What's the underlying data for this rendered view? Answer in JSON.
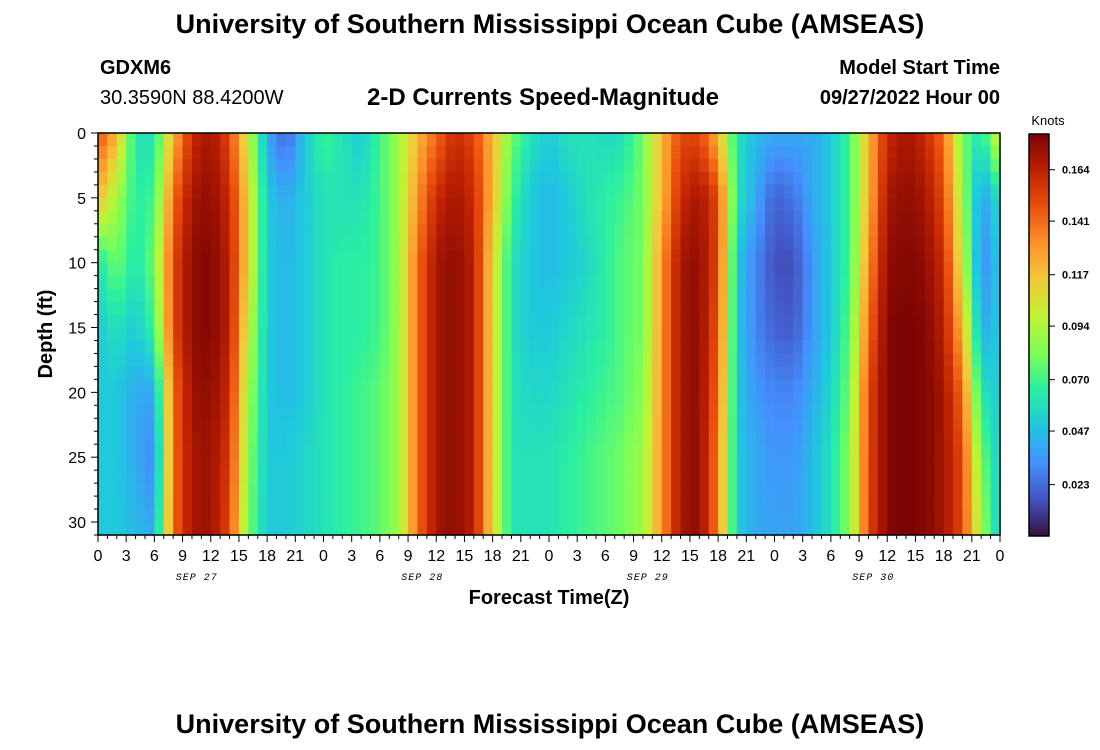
{
  "header": {
    "title": "University of Southern Mississippi Ocean Cube (AMSEAS)",
    "station": "GDXM6",
    "coords": "30.3590N  88.4200W",
    "plot_title": "2-D Currents Speed-Magnitude",
    "start_label": "Model Start Time",
    "start_value": "09/27/2022 Hour 00"
  },
  "footer": {
    "title": "University of Southern Mississippi Ocean Cube (AMSEAS)"
  },
  "chart_data": {
    "type": "heatmap",
    "title": "2-D Currents Speed-Magnitude",
    "xlabel": "Forecast Time(Z)",
    "ylabel": "Depth (ft)",
    "colorbar_label": "Knots",
    "colorbar_ticks": [
      "0.164",
      "0.141",
      "0.117",
      "0.094",
      "0.070",
      "0.047",
      "0.023"
    ],
    "colorbar_values": [
      0.164,
      0.141,
      0.117,
      0.094,
      0.07,
      0.047,
      0.023
    ],
    "color_range": [
      0.0,
      0.18
    ],
    "colormap": [
      "#30123b",
      "#4454c4",
      "#4490fe",
      "#1fc8de",
      "#29efa2",
      "#7dff56",
      "#c1f334",
      "#f1ca3a",
      "#fe922a",
      "#ea4f0d",
      "#be2102",
      "#7a0403"
    ],
    "xlim": [
      0,
      96
    ],
    "ylim": [
      0,
      31
    ],
    "x_ticks": [
      0,
      3,
      6,
      9,
      12,
      15,
      18,
      21,
      24,
      27,
      30,
      33,
      36,
      39,
      42,
      45,
      48,
      51,
      54,
      57,
      60,
      63,
      66,
      69,
      72,
      75,
      78,
      81,
      84,
      87,
      90,
      93,
      96
    ],
    "x_tick_labels": [
      "0",
      "3",
      "6",
      "9",
      "12",
      "15",
      "18",
      "21",
      "0",
      "3",
      "6",
      "9",
      "12",
      "15",
      "18",
      "21",
      "0",
      "3",
      "6",
      "9",
      "12",
      "15",
      "18",
      "21",
      "0",
      "3",
      "6",
      "9",
      "12",
      "15",
      "18",
      "21",
      "0"
    ],
    "y_ticks": [
      0,
      5,
      10,
      15,
      20,
      25,
      30
    ],
    "y_tick_labels": [
      "0",
      "5",
      "10",
      "15",
      "20",
      "25",
      "30"
    ],
    "day_labels": [
      {
        "x": 12,
        "label": "SEP 27"
      },
      {
        "x": 36,
        "label": "SEP 28"
      },
      {
        "x": 60,
        "label": "SEP 29"
      },
      {
        "x": 84,
        "label": "SEP 30"
      }
    ],
    "time_hours": [
      0,
      2,
      4,
      6,
      8,
      10,
      12,
      14,
      16,
      18,
      20,
      22,
      24,
      26,
      28,
      30,
      32,
      34,
      36,
      38,
      40,
      42,
      44,
      46,
      48,
      50,
      52,
      54,
      56,
      58,
      60,
      62,
      64,
      66,
      68,
      70,
      72,
      74,
      76,
      78,
      80,
      82,
      84,
      86,
      88,
      90,
      92,
      94,
      96
    ],
    "depth_ft": [
      0,
      5,
      10,
      15,
      20,
      25,
      31
    ],
    "speed_knots": [
      [
        0.15,
        0.12,
        0.06,
        0.06,
        0.12,
        0.16,
        0.17,
        0.15,
        0.1,
        0.04,
        0.02,
        0.05,
        0.07,
        0.06,
        0.05,
        0.07,
        0.09,
        0.12,
        0.14,
        0.16,
        0.15,
        0.12,
        0.08,
        0.06,
        0.05,
        0.06,
        0.06,
        0.055,
        0.06,
        0.08,
        0.12,
        0.15,
        0.15,
        0.12,
        0.06,
        0.045,
        0.04,
        0.04,
        0.04,
        0.05,
        0.07,
        0.12,
        0.16,
        0.17,
        0.16,
        0.14,
        0.08,
        0.06,
        0.11
      ],
      [
        0.12,
        0.09,
        0.065,
        0.07,
        0.14,
        0.17,
        0.175,
        0.16,
        0.11,
        0.05,
        0.04,
        0.05,
        0.06,
        0.06,
        0.06,
        0.07,
        0.09,
        0.13,
        0.16,
        0.17,
        0.16,
        0.12,
        0.07,
        0.05,
        0.045,
        0.05,
        0.06,
        0.065,
        0.07,
        0.08,
        0.12,
        0.16,
        0.17,
        0.15,
        0.06,
        0.04,
        0.02,
        0.025,
        0.04,
        0.05,
        0.07,
        0.12,
        0.17,
        0.175,
        0.17,
        0.15,
        0.09,
        0.035,
        0.06
      ],
      [
        0.06,
        0.08,
        0.06,
        0.08,
        0.15,
        0.175,
        0.178,
        0.165,
        0.11,
        0.05,
        0.045,
        0.05,
        0.06,
        0.065,
        0.065,
        0.07,
        0.09,
        0.14,
        0.17,
        0.175,
        0.165,
        0.11,
        0.06,
        0.05,
        0.045,
        0.05,
        0.055,
        0.065,
        0.075,
        0.08,
        0.13,
        0.17,
        0.175,
        0.15,
        0.05,
        0.03,
        0.015,
        0.015,
        0.035,
        0.05,
        0.07,
        0.13,
        0.175,
        0.178,
        0.175,
        0.16,
        0.1,
        0.03,
        0.05
      ],
      [
        0.05,
        0.06,
        0.05,
        0.07,
        0.15,
        0.175,
        0.178,
        0.165,
        0.1,
        0.05,
        0.045,
        0.05,
        0.06,
        0.065,
        0.065,
        0.07,
        0.09,
        0.14,
        0.17,
        0.175,
        0.165,
        0.11,
        0.06,
        0.05,
        0.05,
        0.055,
        0.06,
        0.065,
        0.075,
        0.08,
        0.13,
        0.17,
        0.175,
        0.145,
        0.05,
        0.03,
        0.02,
        0.018,
        0.035,
        0.05,
        0.075,
        0.14,
        0.178,
        0.18,
        0.178,
        0.165,
        0.12,
        0.04,
        0.05
      ],
      [
        0.05,
        0.05,
        0.04,
        0.04,
        0.14,
        0.172,
        0.175,
        0.16,
        0.09,
        0.05,
        0.045,
        0.05,
        0.06,
        0.065,
        0.07,
        0.075,
        0.09,
        0.14,
        0.17,
        0.175,
        0.165,
        0.11,
        0.06,
        0.055,
        0.055,
        0.06,
        0.065,
        0.07,
        0.075,
        0.085,
        0.13,
        0.17,
        0.175,
        0.14,
        0.05,
        0.035,
        0.03,
        0.03,
        0.04,
        0.055,
        0.08,
        0.15,
        0.178,
        0.18,
        0.178,
        0.17,
        0.14,
        0.06,
        0.05
      ],
      [
        0.05,
        0.05,
        0.04,
        0.03,
        0.14,
        0.17,
        0.172,
        0.155,
        0.085,
        0.05,
        0.05,
        0.055,
        0.06,
        0.065,
        0.07,
        0.075,
        0.09,
        0.14,
        0.17,
        0.175,
        0.165,
        0.11,
        0.06,
        0.06,
        0.06,
        0.065,
        0.07,
        0.075,
        0.08,
        0.09,
        0.13,
        0.17,
        0.175,
        0.135,
        0.05,
        0.04,
        0.035,
        0.035,
        0.045,
        0.06,
        0.085,
        0.15,
        0.178,
        0.18,
        0.178,
        0.17,
        0.15,
        0.08,
        0.05
      ],
      [
        0.05,
        0.05,
        0.045,
        0.04,
        0.14,
        0.17,
        0.172,
        0.15,
        0.08,
        0.05,
        0.05,
        0.055,
        0.06,
        0.065,
        0.07,
        0.075,
        0.09,
        0.14,
        0.17,
        0.175,
        0.165,
        0.11,
        0.06,
        0.06,
        0.06,
        0.065,
        0.07,
        0.075,
        0.08,
        0.09,
        0.13,
        0.17,
        0.175,
        0.135,
        0.05,
        0.04,
        0.038,
        0.038,
        0.045,
        0.06,
        0.085,
        0.15,
        0.178,
        0.18,
        0.178,
        0.17,
        0.15,
        0.09,
        0.05
      ]
    ]
  }
}
